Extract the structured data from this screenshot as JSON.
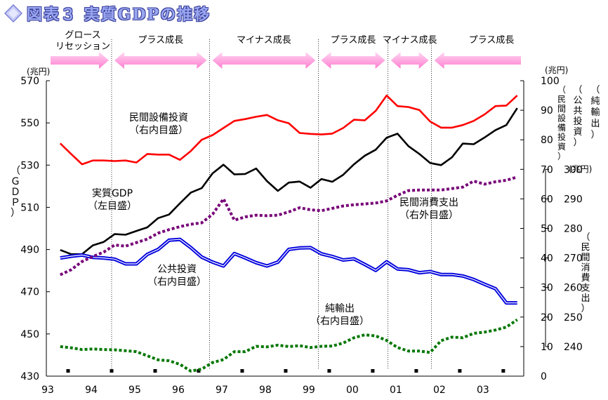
{
  "title": "図表３ 実質GDPの推移",
  "chart_data": {
    "type": "line",
    "x_ticks": [
      "93",
      "94",
      "95",
      "96",
      "97",
      "98",
      "99",
      "00",
      "01",
      "02",
      "03"
    ],
    "phases": [
      {
        "label": "グロース\nリセッション",
        "direction": "right",
        "start": 1993.0,
        "end": 1994.5
      },
      {
        "label": "プラス成長",
        "direction": "both",
        "start": 1994.5,
        "end": 1996.75
      },
      {
        "label": "マイナス成長",
        "direction": "both",
        "start": 1996.75,
        "end": 1999.25
      },
      {
        "label": "プラス成長",
        "direction": "both",
        "start": 1999.25,
        "end": 2000.85
      },
      {
        "label": "マイナス成長",
        "direction": "both",
        "start": 2000.85,
        "end": 2001.85
      },
      {
        "label": "プラス成長",
        "direction": "left",
        "start": 2001.85,
        "end": 2003.85
      }
    ],
    "axes": {
      "left": {
        "unit": "(兆円)",
        "label": "（ＧＤＰ）",
        "ticks": [
          430,
          450,
          470,
          490,
          510,
          530,
          550,
          570
        ],
        "range": [
          430,
          570
        ]
      },
      "right_inner": {
        "unit": "(兆円)",
        "labels": [
          "（民間設備投資）",
          "（公共投資）",
          "（純輸出）"
        ],
        "ticks": [
          0,
          10,
          20,
          30,
          40,
          50,
          60,
          70,
          80,
          90,
          100
        ],
        "range": [
          0,
          100
        ]
      },
      "right_outer": {
        "unit": "(兆円)",
        "label": "（民間消費支出）",
        "ticks": [
          240,
          250,
          260,
          270,
          280,
          290,
          300
        ],
        "range": [
          240,
          300
        ]
      }
    },
    "annotations": [
      {
        "series": "capex",
        "lines": [
          "民間設備投資",
          "（右内目盛）"
        ]
      },
      {
        "series": "gdp",
        "lines": [
          "実質GDP",
          "（左目盛）"
        ]
      },
      {
        "series": "consumption",
        "lines": [
          "民間消費支出",
          "（右外目盛）"
        ]
      },
      {
        "series": "public",
        "lines": [
          "公共投資",
          "（右内目盛）"
        ]
      },
      {
        "series": "netexports",
        "lines": [
          "純輸出",
          "（右内目盛）"
        ]
      }
    ],
    "series": [
      {
        "id": "gdp",
        "axis": "left",
        "color": "#000000",
        "style": "solid",
        "values": [
          489.8,
          487.8,
          487.8,
          492.0,
          493.6,
          497.3,
          497.0,
          498.8,
          500.5,
          504.9,
          506.6,
          511.9,
          517.0,
          519.1,
          526.1,
          530.2,
          525.6,
          525.8,
          528.4,
          522.4,
          517.8,
          521.7,
          522.2,
          519.3,
          523.4,
          522.1,
          525.4,
          530.4,
          534.5,
          537.3,
          543.0,
          544.9,
          539.0,
          535.3,
          531.0,
          530.0,
          533.7,
          540.2,
          539.9,
          543.1,
          546.6,
          549.0,
          557.0
        ]
      },
      {
        "id": "capex",
        "axis": "right_inner",
        "color": "#ff0000",
        "style": "solid",
        "values": [
          78.8,
          75.2,
          71.7,
          73.0,
          73.0,
          72.8,
          73.0,
          72.3,
          75.2,
          75.0,
          75.0,
          73.2,
          76.2,
          80.0,
          81.6,
          84.0,
          86.4,
          87.0,
          87.8,
          88.4,
          86.6,
          85.6,
          82.3,
          82.0,
          81.8,
          82.1,
          84.0,
          86.8,
          86.6,
          89.8,
          95.0,
          91.4,
          91.1,
          90.1,
          86.2,
          84.1,
          84.1,
          85.0,
          86.4,
          88.6,
          91.4,
          91.6,
          95.0
        ]
      },
      {
        "id": "public",
        "axis": "right_inner",
        "color": "#0000dd",
        "style": "double",
        "values": [
          40.0,
          40.6,
          41.0,
          40.2,
          40.0,
          39.6,
          38.0,
          38.0,
          41.2,
          42.9,
          46.0,
          46.3,
          43.5,
          40.3,
          38.6,
          37.3,
          41.5,
          40.0,
          38.4,
          37.3,
          38.6,
          42.9,
          43.4,
          43.5,
          41.4,
          40.5,
          39.3,
          39.7,
          37.8,
          35.8,
          38.7,
          36.3,
          36.0,
          35.0,
          35.4,
          34.4,
          34.4,
          33.9,
          32.7,
          31.1,
          29.6,
          24.8,
          24.8
        ]
      },
      {
        "id": "consumption",
        "axis": "right_outer",
        "color": "#770077",
        "style": "dotted",
        "values": [
          264.3,
          266.0,
          268.8,
          270.5,
          272.0,
          274.4,
          274.0,
          275.2,
          276.4,
          278.4,
          279.6,
          280.6,
          281.4,
          281.9,
          284.8,
          290.0,
          282.8,
          283.9,
          284.5,
          284.3,
          284.5,
          285.6,
          287.0,
          286.3,
          286.0,
          286.8,
          287.6,
          288.0,
          288.3,
          288.6,
          289.3,
          291.2,
          292.8,
          293.0,
          293.0,
          293.0,
          293.5,
          294.0,
          296.0,
          295.0,
          295.8,
          296.3,
          297.4
        ]
      },
      {
        "id": "netexports",
        "axis": "right_inner",
        "color": "#007700",
        "style": "dotted",
        "values": [
          10.0,
          9.6,
          9.0,
          9.2,
          9.0,
          8.9,
          8.6,
          8.3,
          6.9,
          5.5,
          5.2,
          4.0,
          1.7,
          2.4,
          4.6,
          5.6,
          8.3,
          8.3,
          10.1,
          9.9,
          10.5,
          10.0,
          10.3,
          9.7,
          10.1,
          10.2,
          11.2,
          13.0,
          14.0,
          13.6,
          12.1,
          9.7,
          8.5,
          8.5,
          8.0,
          12.0,
          13.2,
          13.0,
          14.5,
          14.9,
          15.6,
          16.6,
          19.1
        ]
      }
    ]
  }
}
